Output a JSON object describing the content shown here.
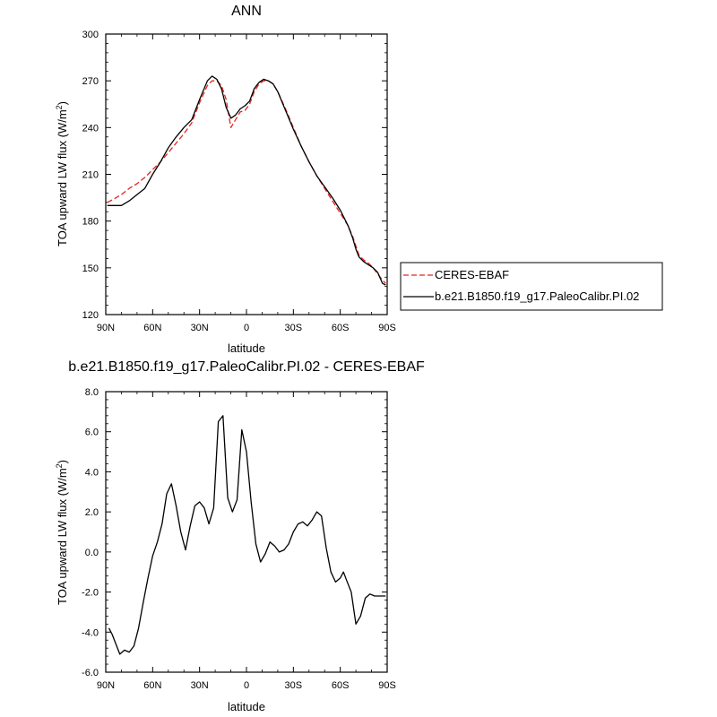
{
  "chart_data": [
    {
      "type": "line",
      "title": "ANN",
      "xlabel": "latitude",
      "ylabel": "TOA upward LW flux (W/m",
      "ylabel_sup": "2",
      "ylabel_close": ")",
      "xlim": [
        90,
        -90
      ],
      "ylim": [
        120,
        300
      ],
      "x_ticks": [
        90,
        60,
        30,
        0,
        -30,
        -60,
        -90
      ],
      "x_tick_labels": [
        "90N",
        "60N",
        "30N",
        "0",
        "30S",
        "60S",
        "90S"
      ],
      "y_ticks": [
        120,
        150,
        180,
        210,
        240,
        270,
        300
      ],
      "y_tick_labels": [
        "120",
        "150",
        "180",
        "210",
        "240",
        "270",
        "300"
      ],
      "legend_position": "right",
      "series": [
        {
          "name": "CERES-EBAF",
          "color": "#e8231f",
          "dash": "dashed",
          "x": [
            89,
            85,
            80,
            75,
            70,
            65,
            60,
            55,
            50,
            45,
            40,
            35,
            30,
            25,
            22,
            19,
            16,
            13,
            10,
            7,
            4,
            1,
            -2,
            -5,
            -8,
            -11,
            -14,
            -17,
            -20,
            -25,
            -30,
            -35,
            -40,
            -45,
            -50,
            -55,
            -60,
            -65,
            -68,
            -70,
            -72,
            -75,
            -78,
            -81,
            -84,
            -87,
            -89
          ],
          "y": [
            192,
            194,
            197,
            201,
            204,
            208,
            213,
            218,
            224,
            230,
            236,
            243,
            256,
            267,
            270,
            270,
            267,
            258,
            240,
            245,
            250,
            251,
            255,
            263,
            268,
            270,
            270,
            268,
            263,
            252,
            240,
            228,
            218,
            209,
            201,
            193,
            185,
            177,
            170,
            164,
            158,
            155,
            153,
            150,
            146,
            142,
            140
          ]
        },
        {
          "name": "b.e21.B1850.f19_g17.PaleoCalibr.PI.02",
          "color": "#000000",
          "dash": "solid",
          "x": [
            89,
            85,
            80,
            75,
            70,
            65,
            60,
            55,
            50,
            45,
            40,
            35,
            30,
            25,
            22,
            19,
            16,
            13,
            10,
            7,
            4,
            1,
            -2,
            -5,
            -8,
            -11,
            -14,
            -17,
            -20,
            -25,
            -30,
            -35,
            -40,
            -45,
            -50,
            -55,
            -60,
            -65,
            -68,
            -70,
            -72,
            -75,
            -78,
            -81,
            -84,
            -87,
            -89
          ],
          "y": [
            190,
            190,
            190,
            193,
            197,
            201,
            210,
            218,
            227,
            234,
            240,
            245,
            258,
            270,
            273,
            271,
            265,
            253,
            246,
            248,
            252,
            254,
            257,
            265,
            269,
            271,
            270,
            268,
            263,
            251,
            239,
            228,
            218,
            209,
            202,
            195,
            187,
            177,
            169,
            162,
            157,
            154,
            152,
            150,
            147,
            140,
            139
          ]
        }
      ]
    },
    {
      "type": "line",
      "title": "b.e21.B1850.f19_g17.PaleoCalibr.PI.02 - CERES-EBAF",
      "xlabel": "latitude",
      "ylabel": "TOA upward LW flux (W/m",
      "ylabel_sup": "2",
      "ylabel_close": ")",
      "xlim": [
        90,
        -90
      ],
      "ylim": [
        -6,
        8
      ],
      "x_ticks": [
        90,
        60,
        30,
        0,
        -30,
        -60,
        -90
      ],
      "x_tick_labels": [
        "90N",
        "60N",
        "30N",
        "0",
        "30S",
        "60S",
        "90S"
      ],
      "y_ticks": [
        -6,
        -4,
        -2,
        0,
        2,
        4,
        6,
        8
      ],
      "y_tick_labels": [
        "-6.0",
        "-4.0",
        "-2.0",
        "0.0",
        "2.0",
        "4.0",
        "6.0",
        "8.0"
      ],
      "series": [
        {
          "color": "#000000",
          "dash": "solid",
          "x": [
            88,
            86,
            84,
            81,
            78,
            75,
            72,
            69,
            66,
            63,
            60,
            57,
            54,
            51,
            48,
            45,
            42,
            39,
            36,
            33,
            30,
            27,
            24,
            21,
            18,
            15,
            12,
            9,
            6,
            3,
            0,
            -3,
            -6,
            -9,
            -12,
            -15,
            -18,
            -21,
            -24,
            -27,
            -30,
            -33,
            -36,
            -39,
            -42,
            -45,
            -48,
            -51,
            -54,
            -57,
            -60,
            -62,
            -64,
            -67,
            -70,
            -73,
            -76,
            -79,
            -82,
            -85,
            -87,
            -89
          ],
          "y": [
            -3.8,
            -4.1,
            -4.5,
            -5.1,
            -4.9,
            -5.0,
            -4.7,
            -3.8,
            -2.5,
            -1.3,
            -0.2,
            0.5,
            1.4,
            2.9,
            3.4,
            2.3,
            1.0,
            0.1,
            1.3,
            2.3,
            2.5,
            2.2,
            1.4,
            2.2,
            6.5,
            6.8,
            2.7,
            2.0,
            2.6,
            6.1,
            5.0,
            2.5,
            0.4,
            -0.5,
            -0.1,
            0.5,
            0.3,
            0.0,
            0.1,
            0.4,
            1.0,
            1.4,
            1.5,
            1.3,
            1.6,
            2.0,
            1.8,
            0.2,
            -1.0,
            -1.5,
            -1.3,
            -1.0,
            -1.4,
            -2.0,
            -3.6,
            -3.2,
            -2.3,
            -2.1,
            -2.2,
            -2.2,
            -2.2,
            -2.2
          ]
        }
      ]
    }
  ]
}
